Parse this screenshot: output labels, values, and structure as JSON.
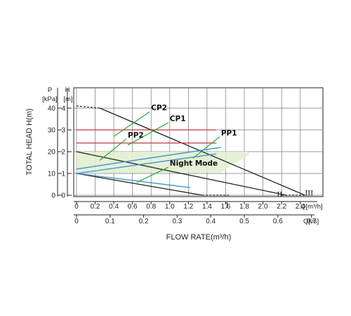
{
  "chart_data": {
    "type": "line",
    "xlabel": "FLOW RATE(m³/h)",
    "ylabel": "TOTAL HEAD H(m)",
    "xlim": [
      0,
      2.6
    ],
    "ylim": [
      0,
      4.5
    ],
    "grid": true,
    "axis_labels": {
      "h_axis": "H",
      "h_unit": "[m]",
      "p_axis": "P",
      "p_unit": "[kPa]",
      "q_m3h": "Q[m³/h]",
      "q_ls": "Q[l/s]"
    },
    "h_ticks": [
      0,
      1,
      2,
      3,
      4
    ],
    "p_ticks": [
      0,
      10,
      20,
      30,
      40
    ],
    "q_m3h_ticks": [
      "0",
      "0.2",
      "0.4",
      "0.6",
      "0.8",
      "1.0",
      "1.2",
      "1.4",
      "1.6",
      "1.8",
      "2.0",
      "2.2",
      "2.4"
    ],
    "q_ls_ticks": [
      "0",
      "0.1",
      "0.2",
      "0.3",
      "0.4",
      "0.5",
      "0.6",
      "0.7"
    ],
    "series": [
      {
        "name": "III",
        "color": "#222222",
        "values": [
          [
            0.25,
            4.0
          ],
          [
            2.45,
            0.0
          ]
        ],
        "ext_left": [
          [
            0.0,
            4.1
          ],
          [
            0.25,
            4.0
          ]
        ],
        "ext_right": [
          [
            2.2,
            0.0
          ],
          [
            2.45,
            0.0
          ]
        ]
      },
      {
        "name": "II",
        "color": "#222222",
        "values": [
          [
            0.0,
            2.0
          ],
          [
            2.25,
            0.0
          ]
        ],
        "ext_left": [],
        "ext_right": []
      },
      {
        "name": "I",
        "color": "#222222",
        "values": [
          [
            0.0,
            1.0
          ],
          [
            1.35,
            0.0
          ]
        ],
        "ext_left": [],
        "ext_right": [
          [
            1.35,
            0.0
          ],
          [
            1.65,
            0.0
          ]
        ]
      },
      {
        "name": "CP2",
        "color": "#c23b3b",
        "values": [
          [
            0.0,
            3.0
          ],
          [
            1.5,
            3.0
          ]
        ]
      },
      {
        "name": "CP1",
        "color": "#c23b3b",
        "values": [
          [
            0.0,
            2.4
          ],
          [
            1.5,
            2.4
          ]
        ]
      },
      {
        "name": "PP2",
        "color": "#3a8fd1",
        "values": [
          [
            0.0,
            1.2
          ],
          [
            1.55,
            2.2
          ]
        ]
      },
      {
        "name": "PP1",
        "color": "#3a8fd1",
        "values": [
          [
            0.0,
            1.0
          ],
          [
            1.5,
            1.9
          ]
        ]
      },
      {
        "name": "Night Mode",
        "color": "#3a8fd1",
        "values": [
          [
            0.0,
            1.0
          ],
          [
            1.22,
            0.35
          ]
        ]
      }
    ],
    "area": {
      "color": "#e2efd2",
      "points": [
        [
          0.0,
          1.0
        ],
        [
          0.0,
          2.0
        ],
        [
          1.85,
          2.0
        ],
        [
          1.85,
          1.85
        ],
        [
          1.55,
          1.05
        ],
        [
          0.0,
          1.0
        ]
      ]
    },
    "annotations": [
      {
        "text": "CP2",
        "label_at": [
          0.8,
          3.9
        ],
        "leader_to": [
          0.4,
          2.7
        ],
        "color": "#2aa63c"
      },
      {
        "text": "CP1",
        "label_at": [
          1.0,
          3.4
        ],
        "leader_to": [
          0.55,
          2.3
        ],
        "color": "#2aa63c"
      },
      {
        "text": "PP2",
        "label_at": [
          0.55,
          2.65
        ],
        "leader_to": [
          0.25,
          1.6
        ],
        "color": "#2aa63c"
      },
      {
        "text": "PP1",
        "label_at": [
          1.55,
          2.75
        ],
        "leader_to": [
          1.25,
          1.7
        ],
        "color": "#2aa63c"
      },
      {
        "text": "Night Mode",
        "label_at": [
          1.0,
          1.35
        ],
        "leader_to": [
          0.65,
          0.6
        ],
        "color": "#2aa63c"
      }
    ],
    "curve_labels": [
      {
        "text": "III",
        "at": [
          2.45,
          0.12
        ]
      },
      {
        "text": "II",
        "at": [
          2.15,
          0.05
        ]
      },
      {
        "text": "I",
        "at": [
          1.6,
          -0.45
        ]
      }
    ]
  }
}
